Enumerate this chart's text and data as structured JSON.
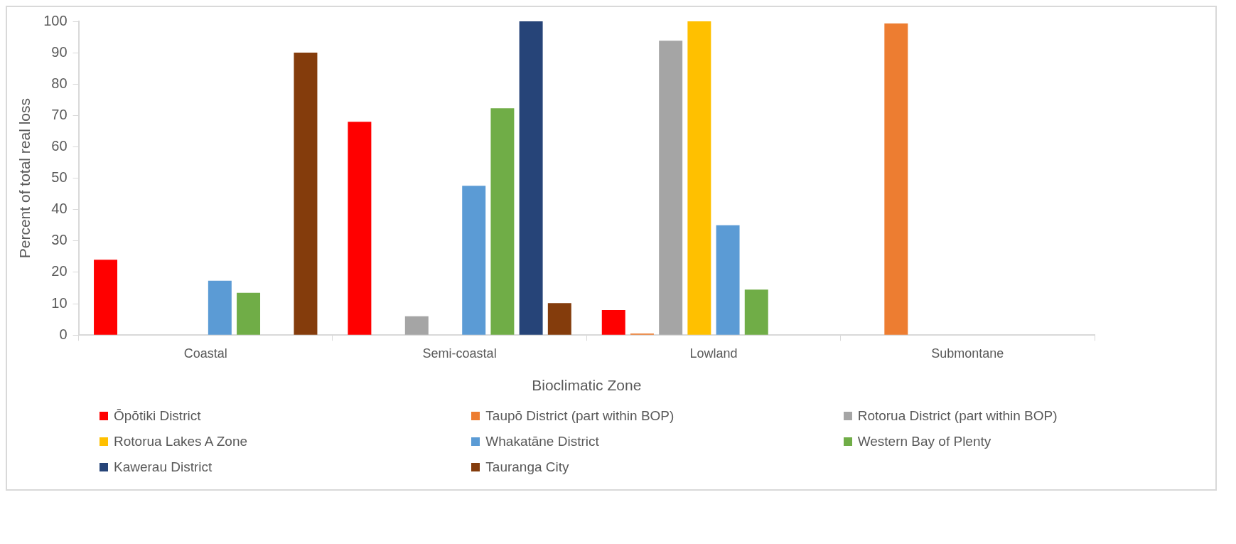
{
  "chart_data": {
    "type": "bar",
    "xlabel": "Bioclimatic Zone",
    "ylabel": "Percent of total real loss",
    "categories": [
      "Coastal",
      "Semi-coastal",
      "Lowland",
      "Submontane"
    ],
    "series": [
      {
        "name": "Ōpōtiki District",
        "color": "#ff0000",
        "values": [
          24,
          68,
          8,
          null
        ]
      },
      {
        "name": "Taupō District (part within BOP)",
        "color": "#ed7d31",
        "values": [
          null,
          null,
          0.5,
          99.3
        ]
      },
      {
        "name": "Rotorua District (part within BOP)",
        "color": "#a5a5a5",
        "values": [
          null,
          6,
          93.8,
          null
        ]
      },
      {
        "name": "Rotorua Lakes A Zone",
        "color": "#ffc000",
        "values": [
          null,
          null,
          100,
          null
        ]
      },
      {
        "name": "Whakatāne District",
        "color": "#5b9bd5",
        "values": [
          17.3,
          47.6,
          35,
          null
        ]
      },
      {
        "name": "Western Bay of Plenty",
        "color": "#70ad47",
        "values": [
          13.5,
          72.3,
          14.5,
          null
        ]
      },
      {
        "name": "Kawerau District",
        "color": "#264478",
        "values": [
          null,
          100,
          null,
          null
        ]
      },
      {
        "name": "Tauranga City",
        "color": "#843c0c",
        "values": [
          90,
          10.2,
          null,
          null
        ]
      }
    ],
    "ylim": [
      0,
      100
    ],
    "yticks": [
      0,
      10,
      20,
      30,
      40,
      50,
      60,
      70,
      80,
      90,
      100
    ],
    "grid": false,
    "legend": "bottom"
  }
}
